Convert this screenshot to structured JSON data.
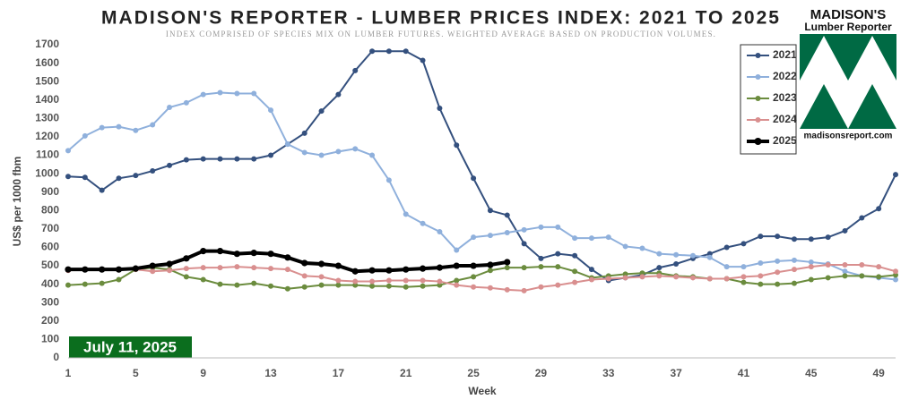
{
  "chart_data": {
    "type": "line",
    "title": "MADISON'S REPORTER - LUMBER PRICES INDEX: 2021 TO 2025",
    "subtitle": "INDEX COMPRISED OF SPECIES MIX ON LUMBER FUTURES. WEIGHTED AVERAGE BASED ON PRODUCTION VOLUMES.",
    "xlabel": "Week",
    "ylabel": "US$ per 1000 fbm",
    "annotation": "July 11, 2025",
    "logo": {
      "name": "MADISON'S",
      "sub": "Lumber Reporter",
      "url": "madisonsreport.com"
    },
    "x": [
      1,
      2,
      3,
      4,
      5,
      6,
      7,
      8,
      9,
      10,
      11,
      12,
      13,
      14,
      15,
      16,
      17,
      18,
      19,
      20,
      21,
      22,
      23,
      24,
      25,
      26,
      27,
      28,
      29,
      30,
      31,
      32,
      33,
      34,
      35,
      36,
      37,
      38,
      39,
      40,
      41,
      42,
      43,
      44,
      45,
      46,
      47,
      48,
      49,
      50
    ],
    "xlim": [
      1,
      50
    ],
    "xticks": [
      1,
      5,
      9,
      13,
      17,
      21,
      25,
      29,
      33,
      37,
      41,
      45,
      49
    ],
    "ylim": [
      0,
      1700
    ],
    "yticks": [
      0,
      100,
      200,
      300,
      400,
      500,
      600,
      700,
      800,
      900,
      1000,
      1100,
      1200,
      1300,
      1400,
      1500,
      1600,
      1700
    ],
    "grid": false,
    "legend": "upper right",
    "series": [
      {
        "name": "2021",
        "color": "#34507e",
        "values": [
          985,
          980,
          910,
          975,
          990,
          1015,
          1045,
          1075,
          1080,
          1080,
          1080,
          1080,
          1100,
          1160,
          1220,
          1340,
          1430,
          1560,
          1665,
          1665,
          1665,
          1615,
          1355,
          1155,
          975,
          800,
          775,
          620,
          540,
          565,
          555,
          480,
          420,
          435,
          450,
          490,
          510,
          540,
          565,
          600,
          620,
          660,
          660,
          645,
          645,
          655,
          690,
          760,
          810,
          995
        ]
      },
      {
        "name": "2022",
        "color": "#8fb0dc",
        "values": [
          1125,
          1205,
          1250,
          1255,
          1235,
          1265,
          1360,
          1385,
          1430,
          1440,
          1435,
          1435,
          1345,
          1160,
          1115,
          1100,
          1120,
          1135,
          1100,
          965,
          780,
          730,
          685,
          585,
          655,
          665,
          680,
          695,
          710,
          710,
          650,
          650,
          655,
          605,
          595,
          565,
          560,
          555,
          545,
          495,
          495,
          515,
          525,
          530,
          520,
          510,
          470,
          445,
          435,
          425
        ]
      },
      {
        "name": "2023",
        "color": "#6b8c3e",
        "values": [
          395,
          400,
          405,
          425,
          480,
          490,
          480,
          440,
          425,
          400,
          395,
          405,
          390,
          375,
          385,
          395,
          395,
          395,
          390,
          390,
          385,
          390,
          395,
          420,
          440,
          475,
          490,
          490,
          495,
          495,
          470,
          435,
          445,
          455,
          460,
          460,
          445,
          440,
          430,
          430,
          410,
          400,
          400,
          405,
          425,
          435,
          445,
          445,
          440,
          450
        ]
      },
      {
        "name": "2024",
        "color": "#d98f8f",
        "values": [
          475,
          480,
          480,
          480,
          480,
          470,
          475,
          485,
          490,
          490,
          495,
          490,
          485,
          480,
          445,
          440,
          420,
          415,
          415,
          420,
          420,
          420,
          415,
          395,
          385,
          380,
          370,
          365,
          385,
          395,
          410,
          425,
          430,
          435,
          440,
          445,
          440,
          435,
          430,
          430,
          440,
          445,
          465,
          480,
          495,
          505,
          505,
          505,
          495,
          470
        ]
      },
      {
        "name": "2025",
        "color": "#000000",
        "values": [
          480,
          480,
          480,
          480,
          485,
          500,
          510,
          540,
          580,
          580,
          565,
          570,
          565,
          545,
          515,
          510,
          500,
          470,
          475,
          475,
          480,
          485,
          490,
          500,
          500,
          505,
          520,
          null,
          null,
          null,
          null,
          null,
          null,
          null,
          null,
          null,
          null,
          null,
          null,
          null,
          null,
          null,
          null,
          null,
          null,
          null,
          null,
          null,
          null,
          null
        ]
      }
    ]
  }
}
